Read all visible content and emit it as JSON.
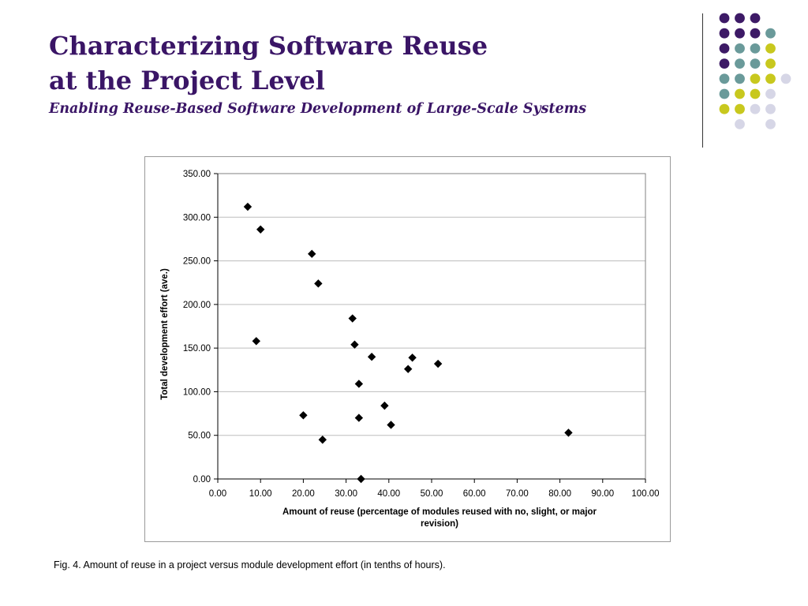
{
  "slide": {
    "title_line1": "Characterizing Software Reuse",
    "title_line2": "at the Project Level",
    "subtitle": "Enabling Reuse-Based Software Development of Large-Scale Systems",
    "caption": "Fig. 4. Amount of reuse in a project versus module development effort (in tenths of hours).",
    "title_color": "#3a1566",
    "decoration_colors": [
      "#3d1a66",
      "#6a9a9a",
      "#c8c81e",
      "#d6d6e6"
    ]
  },
  "chart_data": {
    "type": "scatter",
    "title": "",
    "xlabel": "Amount of reuse (percentage of modules reused with no, slight, or major revision)",
    "ylabel": "Total development effort (ave.)",
    "xlim": [
      0,
      100
    ],
    "ylim": [
      0,
      350
    ],
    "x_ticks": [
      "0.00",
      "10.00",
      "20.00",
      "30.00",
      "40.00",
      "50.00",
      "60.00",
      "70.00",
      "80.00",
      "90.00",
      "100.00"
    ],
    "y_ticks": [
      "0.00",
      "50.00",
      "100.00",
      "150.00",
      "200.00",
      "250.00",
      "300.00",
      "350.00"
    ],
    "grid": "horizontal",
    "marker": "diamond",
    "marker_color": "#000000",
    "series": [
      {
        "points": [
          {
            "x": 7.0,
            "y": 312
          },
          {
            "x": 10.0,
            "y": 286
          },
          {
            "x": 22.0,
            "y": 258
          },
          {
            "x": 23.5,
            "y": 224
          },
          {
            "x": 9.0,
            "y": 158
          },
          {
            "x": 31.5,
            "y": 184
          },
          {
            "x": 32.0,
            "y": 154
          },
          {
            "x": 36.0,
            "y": 140
          },
          {
            "x": 45.5,
            "y": 139
          },
          {
            "x": 44.5,
            "y": 126
          },
          {
            "x": 51.5,
            "y": 132
          },
          {
            "x": 33.0,
            "y": 109
          },
          {
            "x": 39.0,
            "y": 84
          },
          {
            "x": 20.0,
            "y": 73
          },
          {
            "x": 33.0,
            "y": 70
          },
          {
            "x": 40.5,
            "y": 62
          },
          {
            "x": 24.5,
            "y": 45
          },
          {
            "x": 82.0,
            "y": 53
          },
          {
            "x": 33.5,
            "y": 0
          }
        ]
      }
    ]
  }
}
